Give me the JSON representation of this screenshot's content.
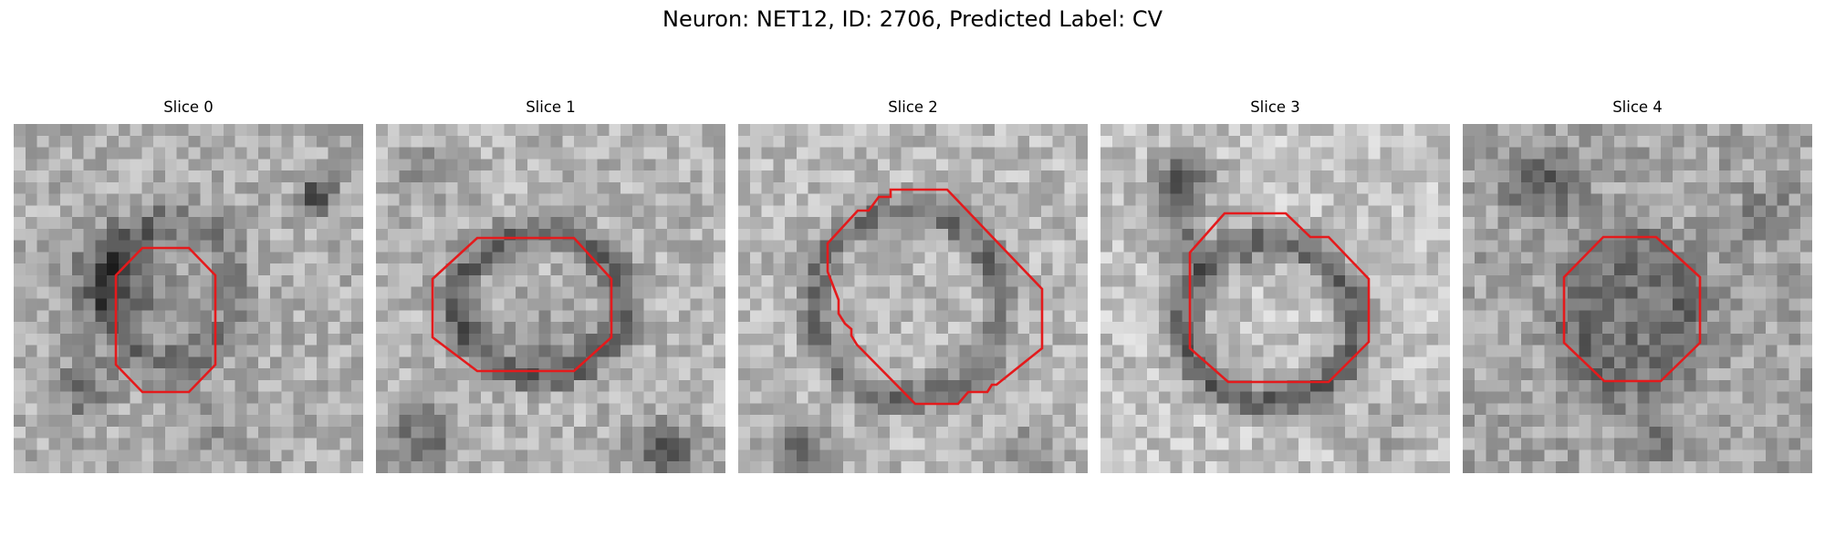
{
  "figure": {
    "title": "Neuron: NET12, ID: 2706, Predicted Label: CV",
    "contour_color": "#e41a1c"
  },
  "slices": [
    {
      "title": "Slice 0"
    },
    {
      "title": "Slice 1"
    },
    {
      "title": "Slice 2"
    },
    {
      "title": "Slice 3"
    },
    {
      "title": "Slice 4"
    }
  ]
}
